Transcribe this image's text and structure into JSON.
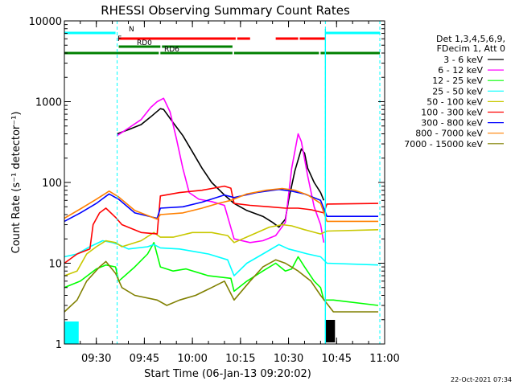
{
  "chart_data": {
    "type": "line",
    "title": "RHESSI Observing Summary Count Rates",
    "xlabel": "Start Time (06-Jan-13 09:20:02)",
    "ylabel": "Count Rate (s⁻¹ detector⁻¹)",
    "y_scale": "log",
    "ylim": [
      1,
      10000
    ],
    "y_ticks": [
      1,
      10,
      100,
      1000,
      10000
    ],
    "y_tick_labels": [
      "1",
      "10",
      "100",
      "1000",
      "10000"
    ],
    "xlim": [
      "09:20:02",
      "11:00"
    ],
    "x_ticks": [
      "09:30",
      "09:45",
      "10:00",
      "10:15",
      "10:30",
      "10:45",
      "11:00"
    ],
    "legend_position": "top-right",
    "legend_header": [
      "Det 1,3,4,5,6,9,",
      "FDecim 1, Att 0"
    ],
    "footer_timestamp": "22-Oct-2021 07:34",
    "flags": [
      {
        "label": "N",
        "color": "#00ffff",
        "segments": [
          [
            "09:20:02",
            "09:36:00"
          ],
          [
            "10:41:30",
            "10:58:30"
          ]
        ]
      },
      {
        "label": "F",
        "color": "#ff0000",
        "segments": [
          [
            "09:37:00",
            "10:13:30"
          ],
          [
            "10:14:00",
            "10:18:00"
          ],
          [
            "10:26:00",
            "10:33:00"
          ],
          [
            "10:33:30",
            "10:41:30"
          ]
        ]
      },
      {
        "label": "RD0",
        "color": "#008000",
        "segments": [
          [
            "09:37:00",
            "09:50:00"
          ],
          [
            "09:50:30",
            "10:12:30"
          ]
        ]
      },
      {
        "label": "RD6",
        "color": "#008000",
        "segments": [
          [
            "09:20:02",
            "09:49:30"
          ],
          [
            "09:50:00",
            "10:12:30"
          ],
          [
            "10:13:00",
            "10:39:30"
          ],
          [
            "10:40:00",
            "10:58:30"
          ]
        ]
      }
    ],
    "shaded_intervals": [
      {
        "color": "#00ffff",
        "start": "09:20:02",
        "end": "09:24:30",
        "label": "N"
      },
      {
        "color": "#000000",
        "start": "10:41:30",
        "end": "10:44:30",
        "label": "3 - 6 keV"
      }
    ],
    "vlines": [
      "09:36:30",
      "10:41:30",
      "10:58:30"
    ],
    "series": [
      {
        "name": "3 - 6 keV",
        "color": "#000000",
        "points": [
          [
            "09:36:30",
            400
          ],
          [
            "09:40:00",
            450
          ],
          [
            "09:44:00",
            520
          ],
          [
            "09:47:00",
            650
          ],
          [
            "09:50:00",
            820
          ],
          [
            "09:51:00",
            800
          ],
          [
            "09:54:00",
            550
          ],
          [
            "09:57:00",
            380
          ],
          [
            "10:00:00",
            240
          ],
          [
            "10:03:00",
            150
          ],
          [
            "10:06:00",
            100
          ],
          [
            "10:10:00",
            70
          ],
          [
            "10:13:00",
            55
          ],
          [
            "10:17:00",
            45
          ],
          [
            "10:22:00",
            38
          ],
          [
            "10:25:00",
            32
          ],
          [
            "10:27:00",
            28
          ],
          [
            "10:29:00",
            35
          ],
          [
            "10:30:00",
            60
          ],
          [
            "10:32:00",
            140
          ],
          [
            "10:34:00",
            260
          ],
          [
            "10:35:00",
            230
          ],
          [
            "10:36:00",
            150
          ],
          [
            "10:38:00",
            100
          ],
          [
            "10:40:00",
            75
          ],
          [
            "10:41:00",
            60
          ]
        ]
      },
      {
        "name": "6 - 12 keV",
        "color": "#ff00ff",
        "points": [
          [
            "09:36:30",
            380
          ],
          [
            "09:40:00",
            470
          ],
          [
            "09:44:00",
            600
          ],
          [
            "09:47:00",
            850
          ],
          [
            "09:49:00",
            1000
          ],
          [
            "09:51:00",
            1100
          ],
          [
            "09:53:00",
            750
          ],
          [
            "09:55:00",
            350
          ],
          [
            "09:57:00",
            150
          ],
          [
            "09:59:00",
            75
          ],
          [
            "10:02:00",
            62
          ],
          [
            "10:06:00",
            58
          ],
          [
            "10:10:00",
            52
          ],
          [
            "10:13:00",
            20
          ],
          [
            "10:18:00",
            18
          ],
          [
            "10:22:00",
            19
          ],
          [
            "10:26:00",
            22
          ],
          [
            "10:29:00",
            32
          ],
          [
            "10:31:00",
            150
          ],
          [
            "10:33:00",
            400
          ],
          [
            "10:34:00",
            320
          ],
          [
            "10:36:00",
            120
          ],
          [
            "10:38:00",
            50
          ],
          [
            "10:40:00",
            30
          ],
          [
            "10:41:00",
            18
          ]
        ]
      },
      {
        "name": "12 - 25 keV",
        "color": "#00ff00",
        "points": [
          [
            "09:20:02",
            5
          ],
          [
            "09:25:00",
            6
          ],
          [
            "09:30:00",
            8.5
          ],
          [
            "09:33:00",
            9.5
          ],
          [
            "09:36:00",
            9
          ],
          [
            "09:37:00",
            6
          ],
          [
            "09:42:00",
            9
          ],
          [
            "09:46:00",
            13
          ],
          [
            "09:48:00",
            18
          ],
          [
            "09:50:00",
            9
          ],
          [
            "09:54:00",
            8
          ],
          [
            "09:58:00",
            8.5
          ],
          [
            "10:05:00",
            7
          ],
          [
            "10:12:00",
            6.5
          ],
          [
            "10:13:00",
            4.5
          ],
          [
            "10:17:00",
            6
          ],
          [
            "10:22:00",
            8
          ],
          [
            "10:26:00",
            10
          ],
          [
            "10:29:00",
            8
          ],
          [
            "10:31:00",
            8.5
          ],
          [
            "10:33:00",
            12
          ],
          [
            "10:35:00",
            9
          ],
          [
            "10:38:00",
            6
          ],
          [
            "10:40:00",
            5
          ],
          [
            "10:41:00",
            3.5
          ],
          [
            "10:44:00",
            3.5
          ],
          [
            "10:58:00",
            3
          ]
        ]
      },
      {
        "name": "25 - 50 keV",
        "color": "#00ffff",
        "points": [
          [
            "09:20:02",
            12
          ],
          [
            "09:24:00",
            13
          ],
          [
            "09:28:00",
            16
          ],
          [
            "09:32:00",
            19
          ],
          [
            "09:35:00",
            18
          ],
          [
            "09:37:00",
            17
          ],
          [
            "09:40:00",
            15
          ],
          [
            "09:46:00",
            16
          ],
          [
            "09:48:00",
            17
          ],
          [
            "09:50:00",
            15.5
          ],
          [
            "09:56:00",
            15
          ],
          [
            "10:05:00",
            13
          ],
          [
            "10:11:00",
            11
          ],
          [
            "10:13:00",
            7
          ],
          [
            "10:17:00",
            10
          ],
          [
            "10:22:00",
            13
          ],
          [
            "10:27:00",
            17
          ],
          [
            "10:30:00",
            15
          ],
          [
            "10:33:00",
            14
          ],
          [
            "10:36:00",
            13
          ],
          [
            "10:40:00",
            12
          ],
          [
            "10:42:00",
            10
          ],
          [
            "10:58:00",
            9.5
          ]
        ]
      },
      {
        "name": "50 - 100 keV",
        "color": "#c8c800",
        "points": [
          [
            "09:20:02",
            7
          ],
          [
            "09:24:00",
            8
          ],
          [
            "09:27:00",
            13
          ],
          [
            "09:30:00",
            16
          ],
          [
            "09:33:00",
            19
          ],
          [
            "09:36:00",
            18
          ],
          [
            "09:38:00",
            16
          ],
          [
            "09:44:00",
            19
          ],
          [
            "09:48:00",
            24
          ],
          [
            "09:50:00",
            21
          ],
          [
            "09:54:00",
            21
          ],
          [
            "10:00:00",
            24
          ],
          [
            "10:06:00",
            24
          ],
          [
            "10:11:00",
            22
          ],
          [
            "10:13:00",
            18
          ],
          [
            "10:18:00",
            22
          ],
          [
            "10:24:00",
            28
          ],
          [
            "10:28:00",
            30
          ],
          [
            "10:31:00",
            29
          ],
          [
            "10:35:00",
            26
          ],
          [
            "10:40:00",
            23
          ],
          [
            "10:42:00",
            25
          ],
          [
            "10:58:00",
            26
          ]
        ]
      },
      {
        "name": "100 - 300 keV",
        "color": "#ff0000",
        "points": [
          [
            "09:20:02",
            10
          ],
          [
            "09:24:00",
            13
          ],
          [
            "09:28:00",
            15
          ],
          [
            "09:29:00",
            30
          ],
          [
            "09:31:00",
            42
          ],
          [
            "09:33:00",
            48
          ],
          [
            "09:36:00",
            37
          ],
          [
            "09:38:00",
            30
          ],
          [
            "09:44:00",
            24
          ],
          [
            "09:49:00",
            23
          ],
          [
            "09:50:00",
            68
          ],
          [
            "09:56:00",
            75
          ],
          [
            "10:03:00",
            80
          ],
          [
            "10:10:00",
            90
          ],
          [
            "10:12:00",
            85
          ],
          [
            "10:13:00",
            55
          ],
          [
            "10:18:00",
            52
          ],
          [
            "10:24:00",
            50
          ],
          [
            "10:29:00",
            48
          ],
          [
            "10:33:00",
            48
          ],
          [
            "10:37:00",
            46
          ],
          [
            "10:41:00",
            42
          ],
          [
            "10:42:00",
            54
          ],
          [
            "10:58:00",
            55
          ]
        ]
      },
      {
        "name": "300 - 800 keV",
        "color": "#0000ff",
        "points": [
          [
            "09:20:02",
            33
          ],
          [
            "09:25:00",
            42
          ],
          [
            "09:30:00",
            55
          ],
          [
            "09:34:00",
            72
          ],
          [
            "09:37:00",
            62
          ],
          [
            "09:42:00",
            42
          ],
          [
            "09:49:00",
            36
          ],
          [
            "09:50:00",
            48
          ],
          [
            "09:57:00",
            50
          ],
          [
            "10:03:00",
            57
          ],
          [
            "10:10:00",
            70
          ],
          [
            "10:13:00",
            65
          ],
          [
            "10:20:00",
            75
          ],
          [
            "10:27:00",
            82
          ],
          [
            "10:31:00",
            78
          ],
          [
            "10:35:00",
            72
          ],
          [
            "10:40:00",
            60
          ],
          [
            "10:42:00",
            38
          ],
          [
            "10:58:00",
            38
          ]
        ]
      },
      {
        "name": "800 - 7000 keV",
        "color": "#ff8000",
        "points": [
          [
            "09:20:02",
            36
          ],
          [
            "09:25:00",
            47
          ],
          [
            "09:30:00",
            62
          ],
          [
            "09:34:00",
            78
          ],
          [
            "09:37:00",
            66
          ],
          [
            "09:42:00",
            45
          ],
          [
            "09:49:00",
            35
          ],
          [
            "09:50:00",
            40
          ],
          [
            "09:57:00",
            42
          ],
          [
            "10:03:00",
            48
          ],
          [
            "10:08:00",
            55
          ],
          [
            "10:12:00",
            60
          ],
          [
            "10:17:00",
            72
          ],
          [
            "10:23:00",
            80
          ],
          [
            "10:28:00",
            84
          ],
          [
            "10:32:00",
            80
          ],
          [
            "10:36:00",
            70
          ],
          [
            "10:40:00",
            55
          ],
          [
            "10:42:00",
            33
          ],
          [
            "10:58:00",
            33
          ]
        ]
      },
      {
        "name": "7000 - 15000 keV",
        "color": "#808000",
        "points": [
          [
            "09:20:02",
            2.5
          ],
          [
            "09:24:00",
            3.5
          ],
          [
            "09:27:00",
            6
          ],
          [
            "09:31:00",
            9
          ],
          [
            "09:33:00",
            10.5
          ],
          [
            "09:36:00",
            7.5
          ],
          [
            "09:38:00",
            5
          ],
          [
            "09:42:00",
            4
          ],
          [
            "09:49:00",
            3.5
          ],
          [
            "09:52:00",
            3
          ],
          [
            "09:56:00",
            3.5
          ],
          [
            "10:01:00",
            4
          ],
          [
            "10:06:00",
            5
          ],
          [
            "10:10:00",
            6
          ],
          [
            "10:13:00",
            3.5
          ],
          [
            "10:18:00",
            6
          ],
          [
            "10:22:00",
            9
          ],
          [
            "10:26:00",
            11
          ],
          [
            "10:29:00",
            10
          ],
          [
            "10:33:00",
            8
          ],
          [
            "10:37:00",
            6
          ],
          [
            "10:40:00",
            4
          ],
          [
            "10:44:00",
            2.5
          ],
          [
            "10:58:00",
            2.5
          ]
        ]
      }
    ]
  }
}
